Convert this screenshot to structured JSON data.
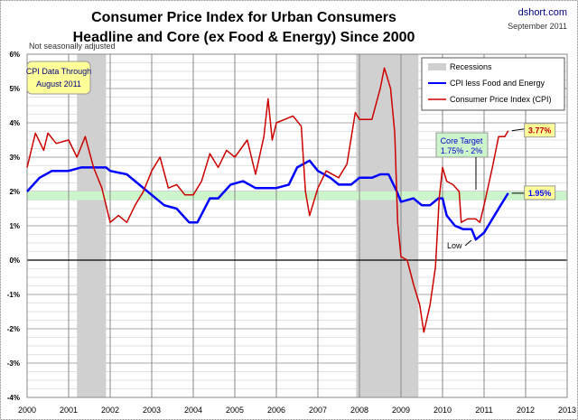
{
  "chart_data": {
    "type": "line",
    "title": "Consumer Price Index for Urban Consumers",
    "subtitle": "Headline and Core (ex Food & Energy) Since 2000",
    "source": "dshort.com",
    "date": "September 2011",
    "note": "Not seasonally adjusted",
    "callout": [
      "CPI Data Through",
      "August 2011"
    ],
    "target_label": [
      "Core Target",
      "1.75% - 2%"
    ],
    "target_band": [
      1.75,
      2.0
    ],
    "low_label": "Low",
    "xlim": [
      2000,
      2013
    ],
    "ylim": [
      -4,
      6
    ],
    "x_ticks": [
      "2000",
      "2001",
      "2002",
      "2003",
      "2004",
      "2005",
      "2006",
      "2007",
      "2008",
      "2009",
      "2010",
      "2011",
      "2012",
      "2013"
    ],
    "y_ticks": [
      "-4%",
      "-3%",
      "-2%",
      "-1%",
      "0%",
      "1%",
      "2%",
      "3%",
      "4%",
      "5%",
      "6%"
    ],
    "grid": true,
    "legend_position": "top-right",
    "recessions": [
      [
        2001.2,
        2001.9
      ],
      [
        2007.92,
        2009.42
      ]
    ],
    "legend": [
      "Recessions",
      "CPI less Food and Energy",
      "Consumer Price Index (CPI)"
    ],
    "colors": {
      "core": "#0000ff",
      "cpi": "#cc0000",
      "recession": "#d0d0d0",
      "band": "#ccf5cc"
    },
    "series": [
      {
        "name": "CPI less Food and Energy",
        "end_label": "1.95%",
        "points": [
          [
            2000.0,
            2.0
          ],
          [
            2000.3,
            2.4
          ],
          [
            2000.6,
            2.6
          ],
          [
            2001.0,
            2.6
          ],
          [
            2001.3,
            2.7
          ],
          [
            2001.6,
            2.7
          ],
          [
            2001.9,
            2.7
          ],
          [
            2002.0,
            2.6
          ],
          [
            2002.4,
            2.5
          ],
          [
            2002.7,
            2.2
          ],
          [
            2003.0,
            1.9
          ],
          [
            2003.3,
            1.6
          ],
          [
            2003.6,
            1.5
          ],
          [
            2003.9,
            1.1
          ],
          [
            2004.1,
            1.1
          ],
          [
            2004.4,
            1.8
          ],
          [
            2004.6,
            1.8
          ],
          [
            2004.9,
            2.2
          ],
          [
            2005.2,
            2.3
          ],
          [
            2005.5,
            2.1
          ],
          [
            2005.8,
            2.1
          ],
          [
            2006.0,
            2.1
          ],
          [
            2006.3,
            2.2
          ],
          [
            2006.5,
            2.7
          ],
          [
            2006.8,
            2.9
          ],
          [
            2007.0,
            2.6
          ],
          [
            2007.3,
            2.4
          ],
          [
            2007.5,
            2.2
          ],
          [
            2007.8,
            2.2
          ],
          [
            2008.0,
            2.4
          ],
          [
            2008.3,
            2.4
          ],
          [
            2008.5,
            2.5
          ],
          [
            2008.7,
            2.5
          ],
          [
            2008.9,
            2.0
          ],
          [
            2009.0,
            1.7
          ],
          [
            2009.3,
            1.8
          ],
          [
            2009.5,
            1.6
          ],
          [
            2009.7,
            1.6
          ],
          [
            2009.9,
            1.8
          ],
          [
            2010.0,
            1.8
          ],
          [
            2010.1,
            1.3
          ],
          [
            2010.3,
            1.0
          ],
          [
            2010.5,
            0.9
          ],
          [
            2010.7,
            0.9
          ],
          [
            2010.8,
            0.6
          ],
          [
            2011.0,
            0.8
          ],
          [
            2011.2,
            1.2
          ],
          [
            2011.4,
            1.6
          ],
          [
            2011.58,
            1.95
          ]
        ]
      },
      {
        "name": "Consumer Price Index (CPI)",
        "end_label": "3.77%",
        "points": [
          [
            2000.0,
            2.7
          ],
          [
            2000.2,
            3.7
          ],
          [
            2000.4,
            3.2
          ],
          [
            2000.5,
            3.7
          ],
          [
            2000.7,
            3.4
          ],
          [
            2001.0,
            3.5
          ],
          [
            2001.2,
            3.0
          ],
          [
            2001.4,
            3.6
          ],
          [
            2001.6,
            2.7
          ],
          [
            2001.8,
            2.1
          ],
          [
            2001.9,
            1.6
          ],
          [
            2002.0,
            1.1
          ],
          [
            2002.2,
            1.3
          ],
          [
            2002.4,
            1.1
          ],
          [
            2002.6,
            1.6
          ],
          [
            2002.8,
            2.0
          ],
          [
            2003.0,
            2.6
          ],
          [
            2003.2,
            3.0
          ],
          [
            2003.4,
            2.1
          ],
          [
            2003.6,
            2.2
          ],
          [
            2003.8,
            1.9
          ],
          [
            2004.0,
            1.9
          ],
          [
            2004.2,
            2.3
          ],
          [
            2004.4,
            3.1
          ],
          [
            2004.6,
            2.7
          ],
          [
            2004.8,
            3.2
          ],
          [
            2005.0,
            3.0
          ],
          [
            2005.3,
            3.5
          ],
          [
            2005.5,
            2.5
          ],
          [
            2005.7,
            3.6
          ],
          [
            2005.8,
            4.7
          ],
          [
            2005.9,
            3.5
          ],
          [
            2006.0,
            4.0
          ],
          [
            2006.4,
            4.2
          ],
          [
            2006.6,
            3.9
          ],
          [
            2006.7,
            2.0
          ],
          [
            2006.8,
            1.3
          ],
          [
            2007.0,
            2.1
          ],
          [
            2007.2,
            2.6
          ],
          [
            2007.5,
            2.4
          ],
          [
            2007.7,
            2.8
          ],
          [
            2007.9,
            4.3
          ],
          [
            2008.0,
            4.1
          ],
          [
            2008.3,
            4.1
          ],
          [
            2008.5,
            5.0
          ],
          [
            2008.6,
            5.6
          ],
          [
            2008.75,
            5.0
          ],
          [
            2008.85,
            3.7
          ],
          [
            2008.92,
            1.1
          ],
          [
            2009.0,
            0.1
          ],
          [
            2009.15,
            0.0
          ],
          [
            2009.3,
            -0.7
          ],
          [
            2009.45,
            -1.3
          ],
          [
            2009.55,
            -2.1
          ],
          [
            2009.7,
            -1.3
          ],
          [
            2009.83,
            -0.2
          ],
          [
            2009.92,
            1.8
          ],
          [
            2010.0,
            2.7
          ],
          [
            2010.1,
            2.3
          ],
          [
            2010.25,
            2.2
          ],
          [
            2010.4,
            2.0
          ],
          [
            2010.45,
            1.1
          ],
          [
            2010.6,
            1.2
          ],
          [
            2010.8,
            1.2
          ],
          [
            2010.9,
            1.1
          ],
          [
            2011.0,
            1.6
          ],
          [
            2011.2,
            2.7
          ],
          [
            2011.35,
            3.6
          ],
          [
            2011.5,
            3.6
          ],
          [
            2011.58,
            3.77
          ]
        ]
      }
    ]
  }
}
